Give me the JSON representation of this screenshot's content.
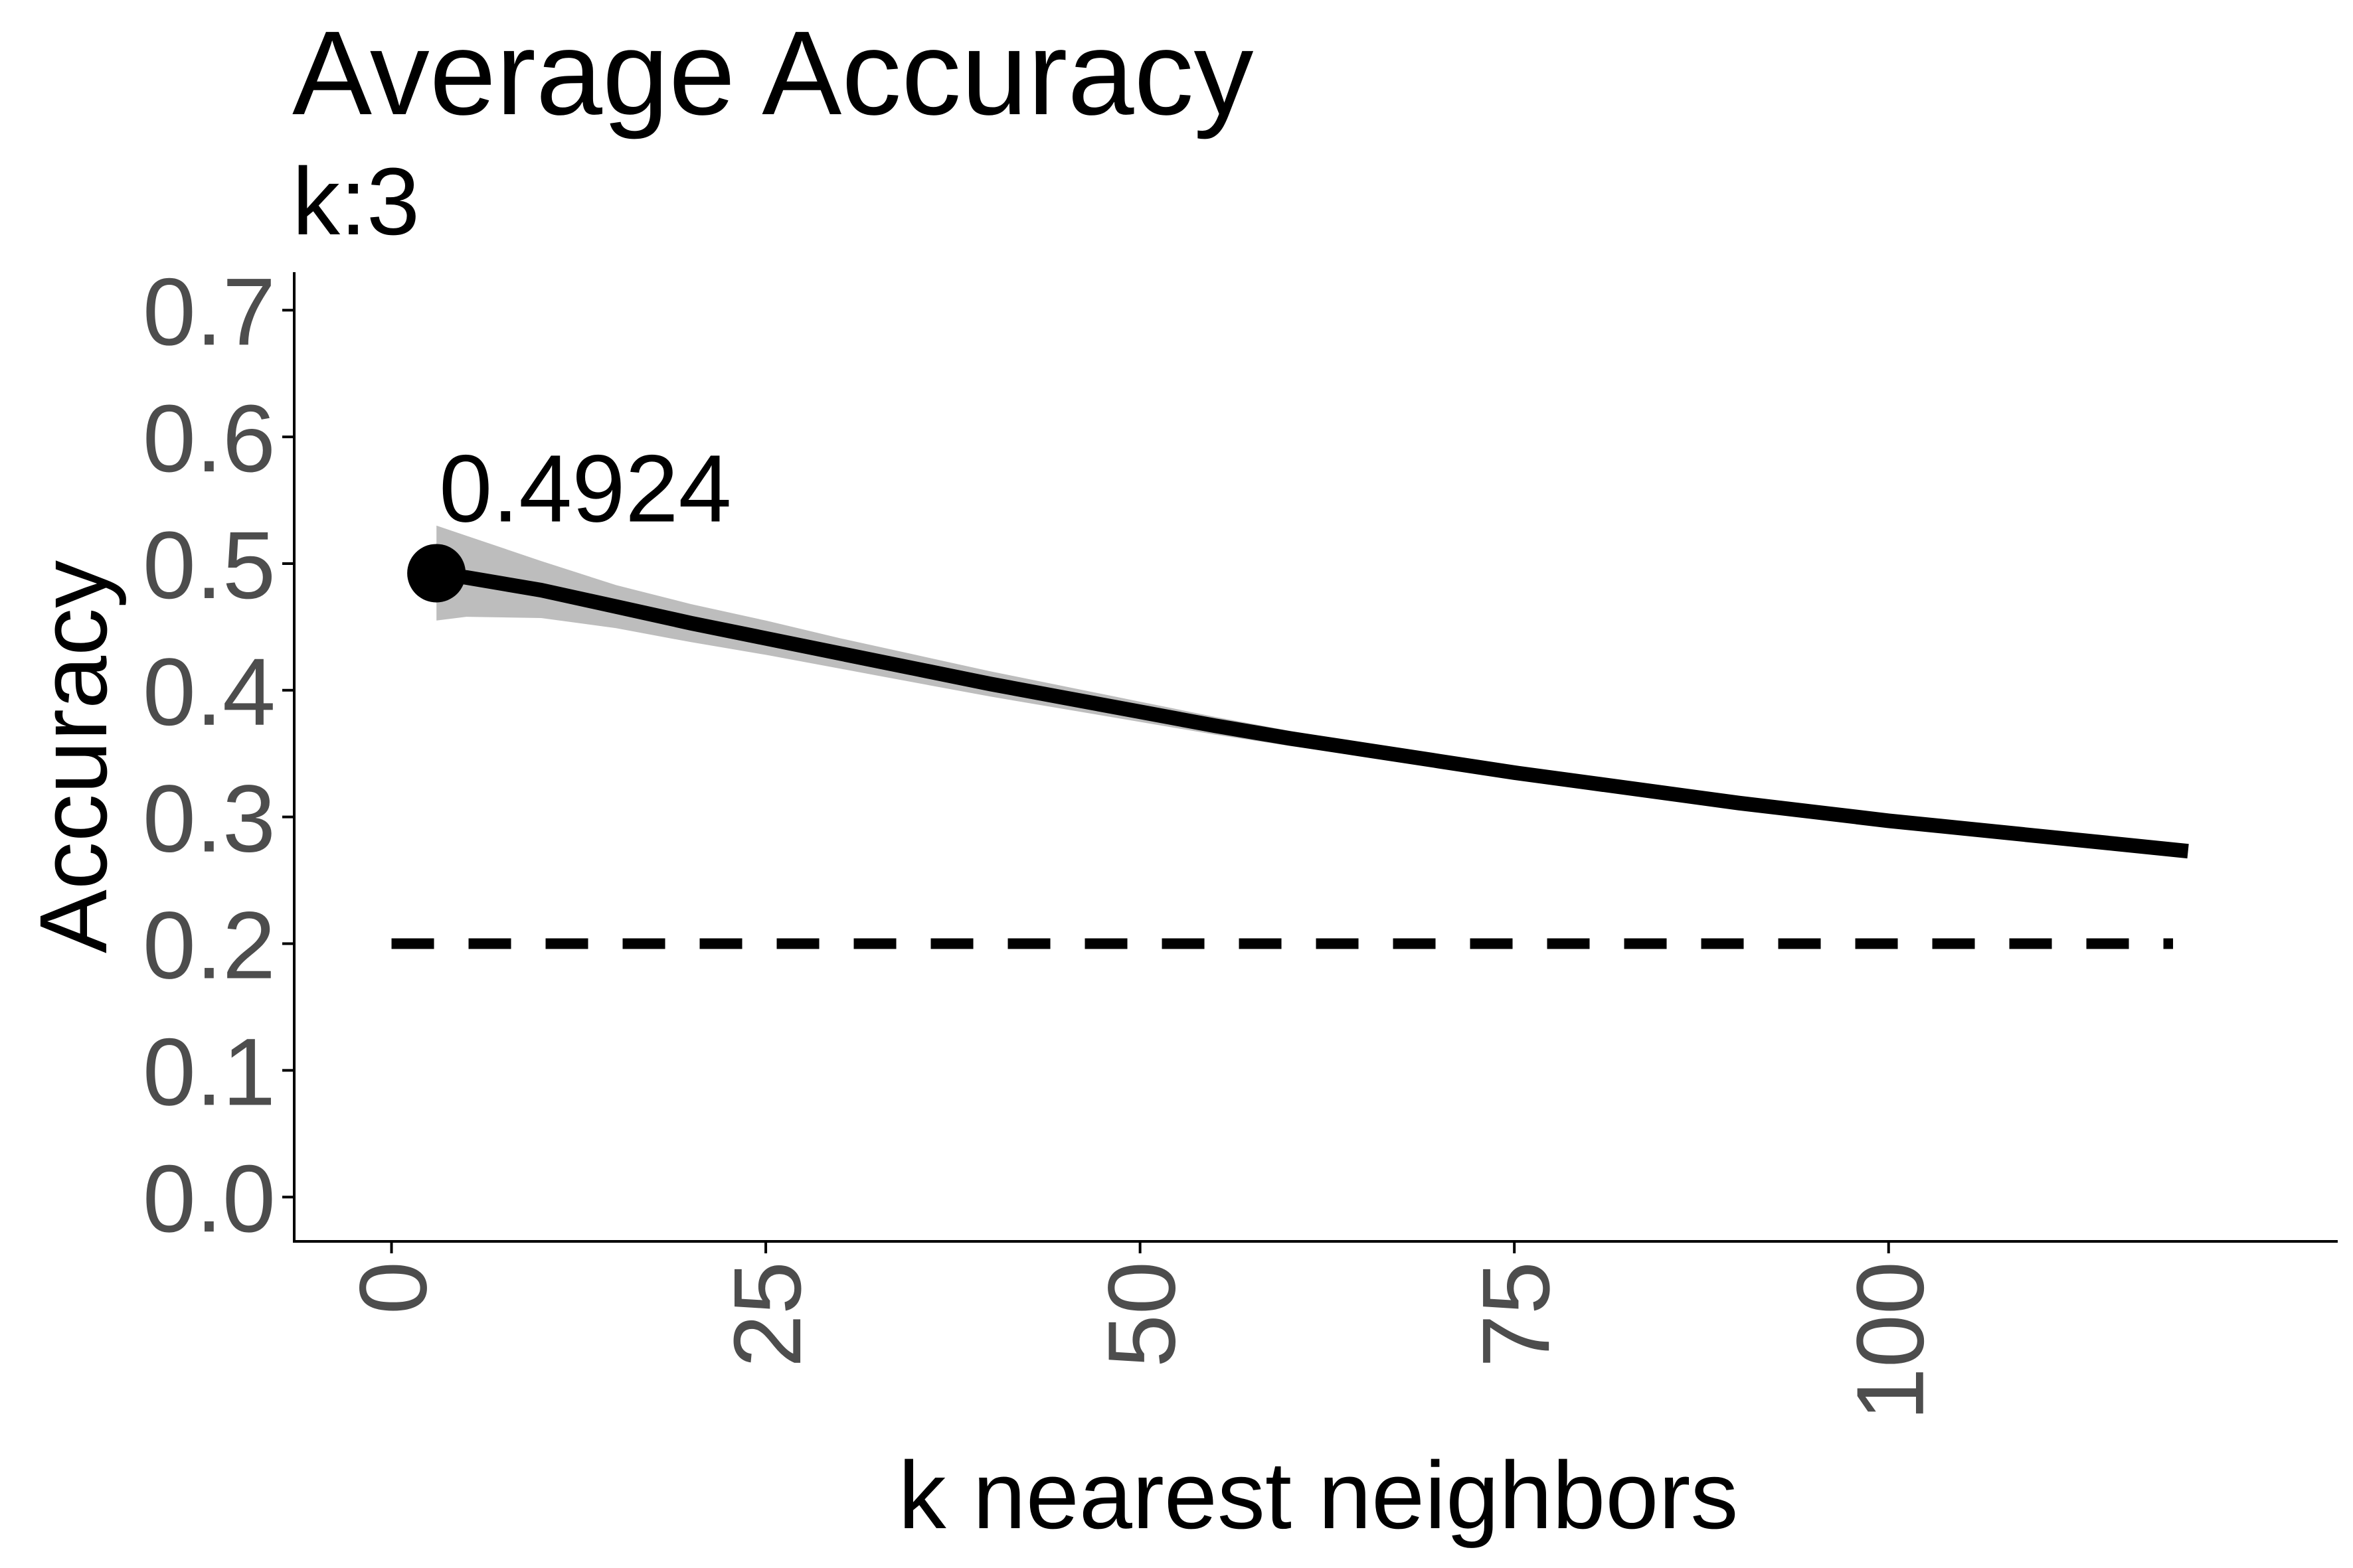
{
  "chart_data": {
    "type": "line",
    "title": "Average Accuracy",
    "subtitle": "k:3",
    "xlabel": "k nearest neighbors",
    "ylabel": "Accuracy",
    "xlim": [
      -6.5,
      130
    ],
    "ylim": [
      -0.035,
      0.73
    ],
    "x_ticks": [
      0,
      25,
      50,
      75,
      100
    ],
    "x_tick_labels": [
      "0",
      "25",
      "50",
      "75",
      "100"
    ],
    "y_ticks": [
      0.0,
      0.1,
      0.2,
      0.3,
      0.4,
      0.5,
      0.6,
      0.7
    ],
    "y_tick_labels": [
      "0.0",
      "0.1",
      "0.2",
      "0.3",
      "0.4",
      "0.5",
      "0.6",
      "0.7"
    ],
    "grid": false,
    "series": [
      {
        "x": [
          3,
          5,
          10,
          15,
          20,
          25,
          30,
          35,
          40,
          45,
          50,
          55,
          60,
          65,
          70,
          75,
          80,
          85,
          90,
          95,
          100,
          105,
          110,
          115,
          120
        ],
        "y": [
          0.4924,
          0.489,
          0.479,
          0.466,
          0.453,
          0.441,
          0.429,
          0.417,
          0.405,
          0.394,
          0.383,
          0.372,
          0.362,
          0.353,
          0.344,
          0.335,
          0.327,
          0.319,
          0.311,
          0.304,
          0.297,
          0.291,
          0.285,
          0.279,
          0.273
        ],
        "lower": [
          0.455,
          0.458,
          0.457,
          0.449,
          0.438,
          0.428,
          0.417,
          0.406,
          0.395,
          0.385,
          0.375,
          0.365,
          0.356,
          0.348,
          0.339,
          0.331,
          0.324,
          0.317,
          0.311,
          0.304,
          0.297,
          0.291,
          0.285,
          0.279,
          0.273
        ],
        "upper": [
          0.53,
          0.522,
          0.502,
          0.483,
          0.468,
          0.455,
          0.441,
          0.428,
          0.415,
          0.403,
          0.391,
          0.379,
          0.368,
          0.358,
          0.349,
          0.34,
          0.331,
          0.322,
          0.313,
          0.305,
          0.297,
          0.291,
          0.285,
          0.279,
          0.273
        ]
      }
    ],
    "reference_line": {
      "y": 0.2,
      "x_start": 0,
      "x_end": 119,
      "style": "dashed"
    },
    "highlight_point": {
      "x": 3,
      "y": 0.4924,
      "label": "0.4924"
    },
    "colors": {
      "line": "#000000",
      "ribbon": "#bdbdbd",
      "tick_text": "#4d4d4d",
      "axis": "#000000"
    }
  }
}
